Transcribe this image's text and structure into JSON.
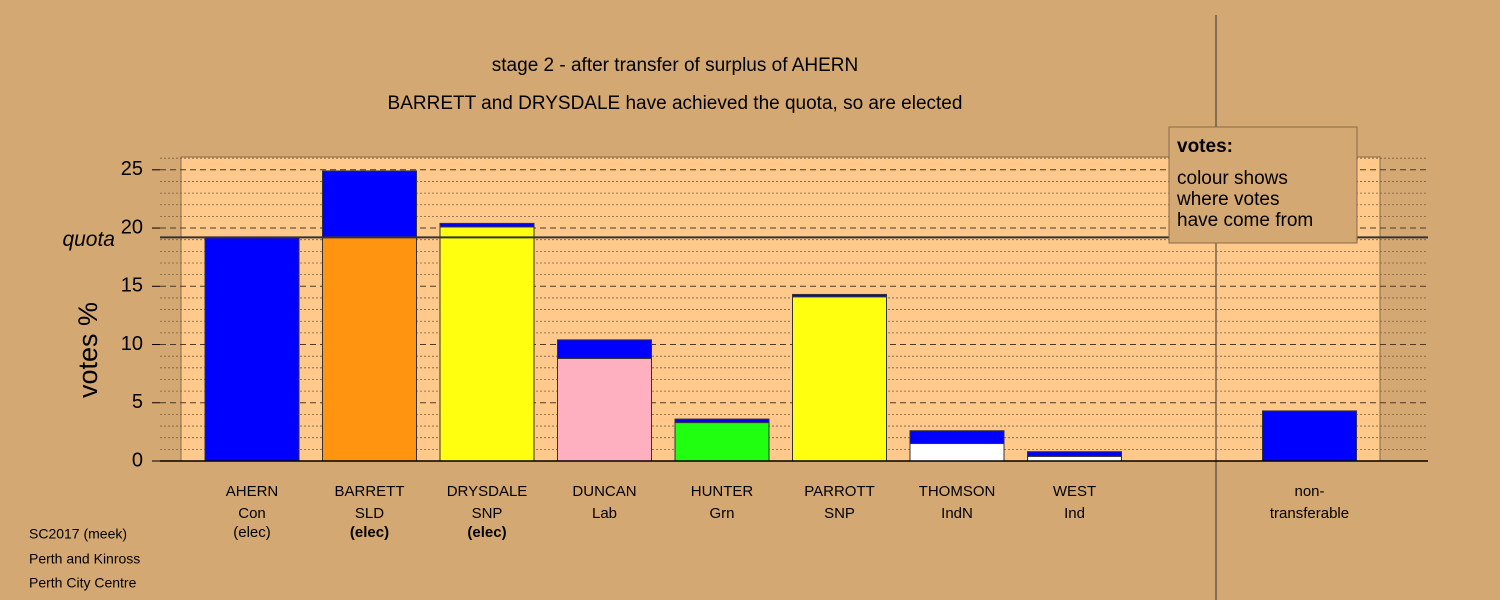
{
  "chart_data": {
    "type": "stacked-bar",
    "title": "stage 2 - after transfer of surplus of AHERN",
    "subtitle": "BARRETT and DRYSDALE have achieved the quota, so are elected",
    "ylabel": "votes %",
    "categories": [
      "AHERN",
      "BARRETT",
      "DRYSDALE",
      "DUNCAN",
      "HUNTER",
      "PARROTT",
      "THOMSON",
      "WEST",
      "non-",
      null
    ],
    "parties": [
      "Con",
      "SLD",
      "SNP",
      "Lab",
      "Grn",
      "SNP",
      "IndN",
      "Ind",
      "transferable",
      null
    ],
    "status": [
      "(elec)",
      "(elec)",
      "(elec)",
      null,
      null,
      null,
      null,
      null,
      null,
      null
    ],
    "status_bold": [
      false,
      true,
      true,
      false,
      false,
      false,
      false,
      false,
      false,
      false
    ],
    "series": [
      {
        "colors": [
          "#0000ff",
          "#ff9410",
          "#ffff10",
          "#ffb0c0",
          "#20ff10",
          "#ffff10",
          "#ffffff",
          "#ffffff",
          "#0000ff",
          "#0000ff"
        ],
        "values": [
          19.2,
          19.2,
          20.1,
          8.8,
          3.3,
          14.1,
          1.5,
          0.4,
          4.3,
          null
        ]
      },
      {
        "color": "#0000ff",
        "values": [
          0,
          5.7,
          0.3,
          1.6,
          0.3,
          0.2,
          1.1,
          0.4,
          0,
          null
        ]
      }
    ],
    "ylim": [
      0,
      26.1
    ],
    "yticks": [
      0,
      5,
      10,
      15,
      20,
      25
    ],
    "minor_yticks": [
      1,
      2,
      3,
      4,
      6,
      7,
      8,
      9,
      11,
      12,
      13,
      14,
      16,
      17,
      18,
      19,
      21,
      22,
      23,
      24,
      26
    ],
    "quota": {
      "value": 19.2,
      "label": "quota"
    },
    "legend_box": {
      "heading": "votes:",
      "lines": [
        "colour shows",
        "where votes",
        "have come from"
      ]
    },
    "notes": [
      "SC2017 (meek)",
      "Perth and Kinross",
      "Perth City Centre"
    ]
  }
}
